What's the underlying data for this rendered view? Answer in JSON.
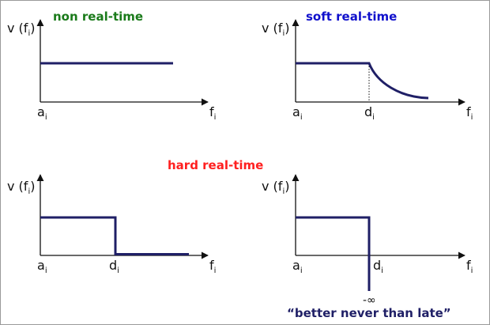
{
  "colors": {
    "axis": "#111111",
    "curve": "#1f1f66",
    "non_real_time": "#1a7a1a",
    "soft_real_time": "#1010cc",
    "hard_real_time": "#ff2020",
    "note": "#1f1f66"
  },
  "titles": {
    "non_real_time": "non real-time",
    "soft_real_time": "soft real-time",
    "hard_real_time": "hard real-time"
  },
  "labels": {
    "v": "v (f",
    "v_close": ")",
    "sub_i": "i",
    "a": "a",
    "d": "d",
    "f": "f",
    "minus_infinity": "-∞"
  },
  "note": "“better never than late”",
  "panels": [
    {
      "id": "non-real-time",
      "shape": "constant"
    },
    {
      "id": "soft-real-time",
      "shape": "decay-after-deadline"
    },
    {
      "id": "hard-real-time",
      "shape": "zero-after-deadline"
    },
    {
      "id": "firm-real-time",
      "shape": "minus-infinity-after-deadline"
    }
  ]
}
